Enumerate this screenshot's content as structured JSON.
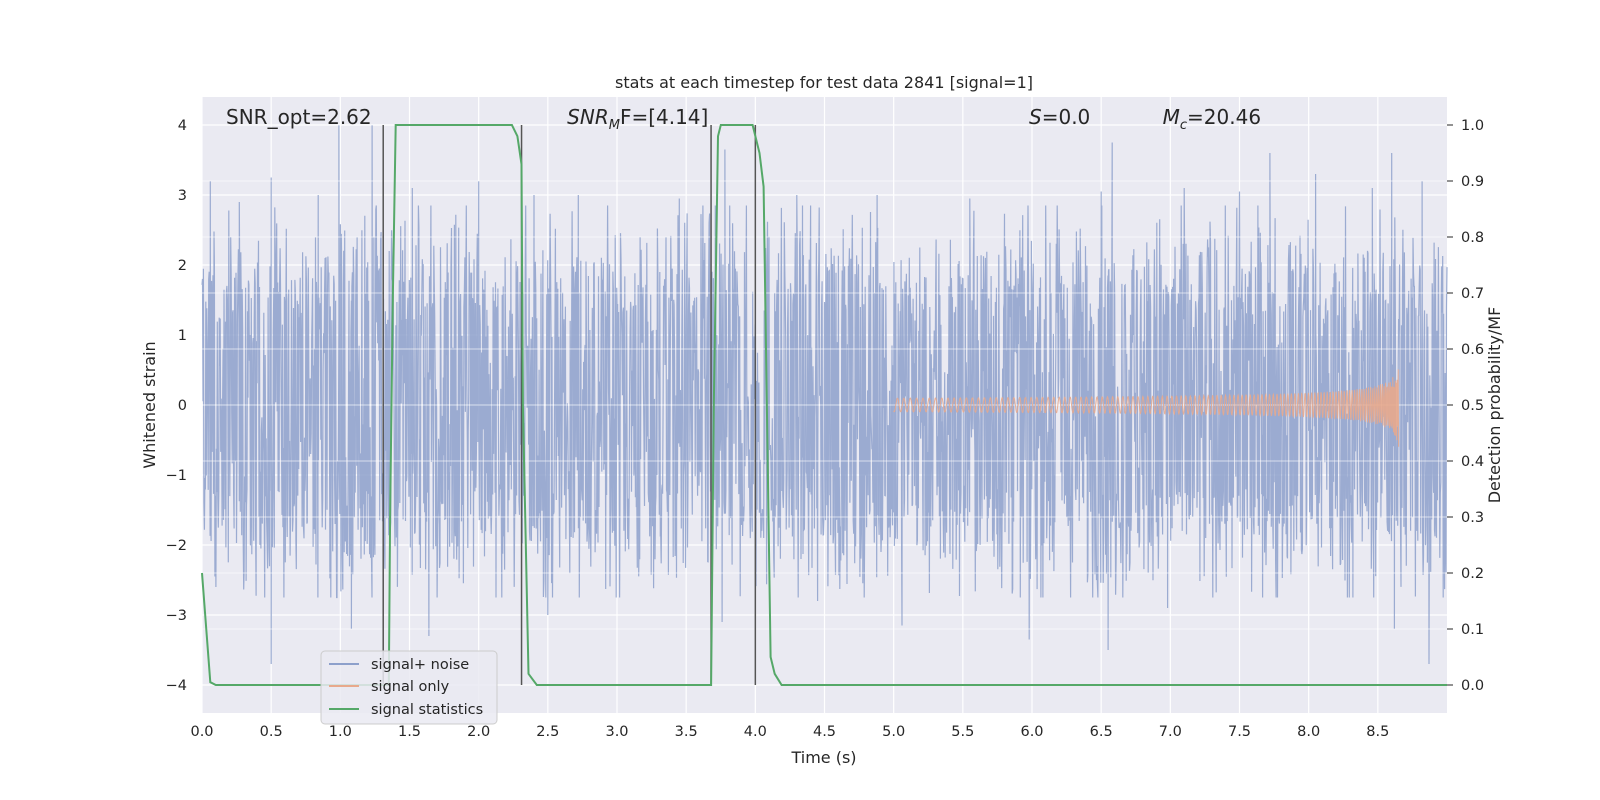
{
  "chart_data": {
    "type": "line",
    "title": "stats at each timestep for test data 2841 [signal=1]",
    "xlabel": "Time (s)",
    "ylabel": "Whitened strain",
    "y2label": "Detection probability/MF",
    "xlim": [
      0.0,
      9.0
    ],
    "ylim": [
      -4.4,
      4.4
    ],
    "y2lim": [
      -0.05,
      1.05
    ],
    "x_ticks": [
      "0.0",
      "0.5",
      "1.0",
      "1.5",
      "2.0",
      "2.5",
      "3.0",
      "3.5",
      "4.0",
      "4.5",
      "5.0",
      "5.5",
      "6.0",
      "6.5",
      "7.0",
      "7.5",
      "8.0",
      "8.5"
    ],
    "y_ticks": [
      "−4",
      "−3",
      "−2",
      "−1",
      "0",
      "1",
      "2",
      "3",
      "4"
    ],
    "y2_ticks": [
      "0.0",
      "0.1",
      "0.2",
      "0.3",
      "0.4",
      "0.5",
      "0.6",
      "0.7",
      "0.8",
      "0.9",
      "1.0"
    ],
    "grid": true,
    "legend_position": "lower-left",
    "annotations": [
      {
        "id": "snr-opt",
        "label": "SNR_opt=2.62",
        "x": 0.7
      },
      {
        "id": "snr-mf",
        "label": "SNR",
        "sub": "M",
        "suffix": "F=[4.14]",
        "x": 3.15
      },
      {
        "id": "s-val",
        "label": "S=0.0",
        "x": 6.2
      },
      {
        "id": "mc-val",
        "label": "M",
        "sub": "c",
        "suffix": "=20.46",
        "x": 7.3
      }
    ],
    "vertical_lines": [
      1.31,
      2.31,
      3.68,
      4.0
    ],
    "series": [
      {
        "name": "signal+ noise",
        "color": "#8da0cb",
        "kind": "noise",
        "spikes": [
          [
            0.06,
            3.2
          ],
          [
            0.27,
            2.9
          ],
          [
            0.5,
            3.25
          ],
          [
            0.84,
            3.0
          ],
          [
            0.99,
            4.0
          ],
          [
            1.23,
            4.0
          ],
          [
            1.52,
            3.1
          ],
          [
            2.0,
            3.2
          ],
          [
            2.4,
            3.0
          ],
          [
            2.72,
            3.0
          ],
          [
            3.45,
            2.95
          ],
          [
            3.78,
            3.65
          ],
          [
            4.3,
            3.0
          ],
          [
            4.88,
            3.0
          ],
          [
            5.55,
            2.95
          ],
          [
            6.5,
            3.05
          ],
          [
            6.58,
            3.75
          ],
          [
            7.1,
            3.1
          ],
          [
            7.5,
            3.05
          ],
          [
            7.72,
            3.6
          ],
          [
            8.05,
            3.3
          ],
          [
            8.46,
            3.1
          ],
          [
            8.6,
            3.6
          ],
          [
            8.82,
            3.2
          ],
          [
            0.5,
            -3.7
          ],
          [
            1.08,
            -3.2
          ],
          [
            1.64,
            -3.3
          ],
          [
            2.5,
            -3.0
          ],
          [
            3.76,
            -3.1
          ],
          [
            4.45,
            -2.8
          ],
          [
            5.06,
            -3.15
          ],
          [
            5.98,
            -3.35
          ],
          [
            6.55,
            -3.5
          ],
          [
            6.98,
            -2.9
          ],
          [
            8.32,
            -2.75
          ],
          [
            8.62,
            -3.2
          ],
          [
            8.87,
            -3.7
          ]
        ]
      },
      {
        "name": "signal only",
        "color": "#e8a98c",
        "kind": "chirp",
        "start": 5.0,
        "end": 8.65,
        "peak_amplitude": 0.6
      },
      {
        "name": "signal statistics",
        "color": "#55a868",
        "axis": "y2",
        "x": [
          0.0,
          0.06,
          0.1,
          1.3,
          1.35,
          1.36,
          1.38,
          1.4,
          2.24,
          2.28,
          2.31,
          2.32,
          2.36,
          2.42,
          3.68,
          3.7,
          3.73,
          3.75,
          3.98,
          4.03,
          4.06,
          4.11,
          4.14,
          4.19,
          9.0
        ],
        "y": [
          0.2,
          0.005,
          0.0,
          0.0,
          0.0,
          0.3,
          0.7,
          1.0,
          1.0,
          0.98,
          0.93,
          0.5,
          0.02,
          0.0,
          0.0,
          0.5,
          0.98,
          1.0,
          1.0,
          0.95,
          0.89,
          0.05,
          0.02,
          0.0,
          0.0
        ]
      }
    ]
  }
}
